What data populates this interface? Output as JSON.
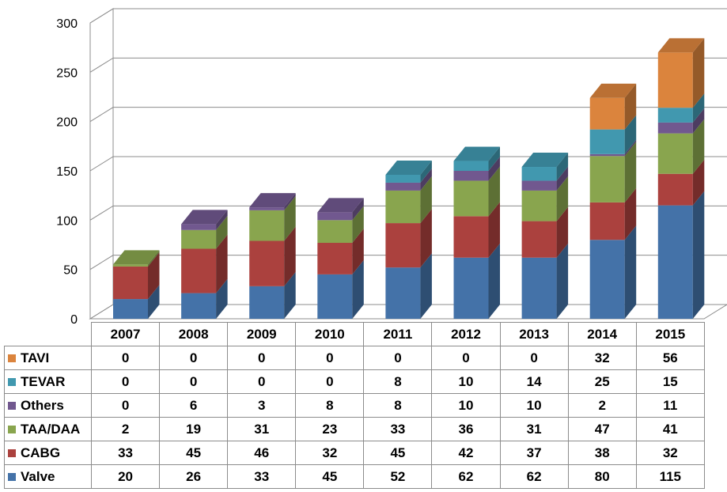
{
  "chart_data": {
    "type": "bar",
    "stacked": true,
    "three_d": true,
    "categories": [
      "2007",
      "2008",
      "2009",
      "2010",
      "2011",
      "2012",
      "2013",
      "2014",
      "2015"
    ],
    "series": [
      {
        "name": "Valve",
        "color": "#4472a8",
        "values": [
          20,
          26,
          33,
          45,
          52,
          62,
          62,
          80,
          115
        ]
      },
      {
        "name": "CABG",
        "color": "#ab413e",
        "values": [
          33,
          45,
          46,
          32,
          45,
          42,
          37,
          38,
          32
        ]
      },
      {
        "name": "TAA/DAA",
        "color": "#89a54e",
        "values": [
          2,
          19,
          31,
          23,
          33,
          36,
          31,
          47,
          41
        ]
      },
      {
        "name": "Others",
        "color": "#71588f",
        "values": [
          0,
          6,
          3,
          8,
          8,
          10,
          10,
          2,
          11
        ]
      },
      {
        "name": "TEVAR",
        "color": "#4198af",
        "values": [
          0,
          0,
          0,
          0,
          8,
          10,
          14,
          25,
          15
        ]
      },
      {
        "name": "TAVI",
        "color": "#db843d",
        "values": [
          0,
          0,
          0,
          0,
          0,
          0,
          0,
          32,
          56
        ]
      }
    ],
    "ylim": [
      0,
      300
    ],
    "yticks": [
      0,
      50,
      100,
      150,
      200,
      250,
      300
    ],
    "grid": true,
    "legend": "data-table",
    "table_row_order": [
      "TAVI",
      "TEVAR",
      "Others",
      "TAA/DAA",
      "CABG",
      "Valve"
    ]
  }
}
